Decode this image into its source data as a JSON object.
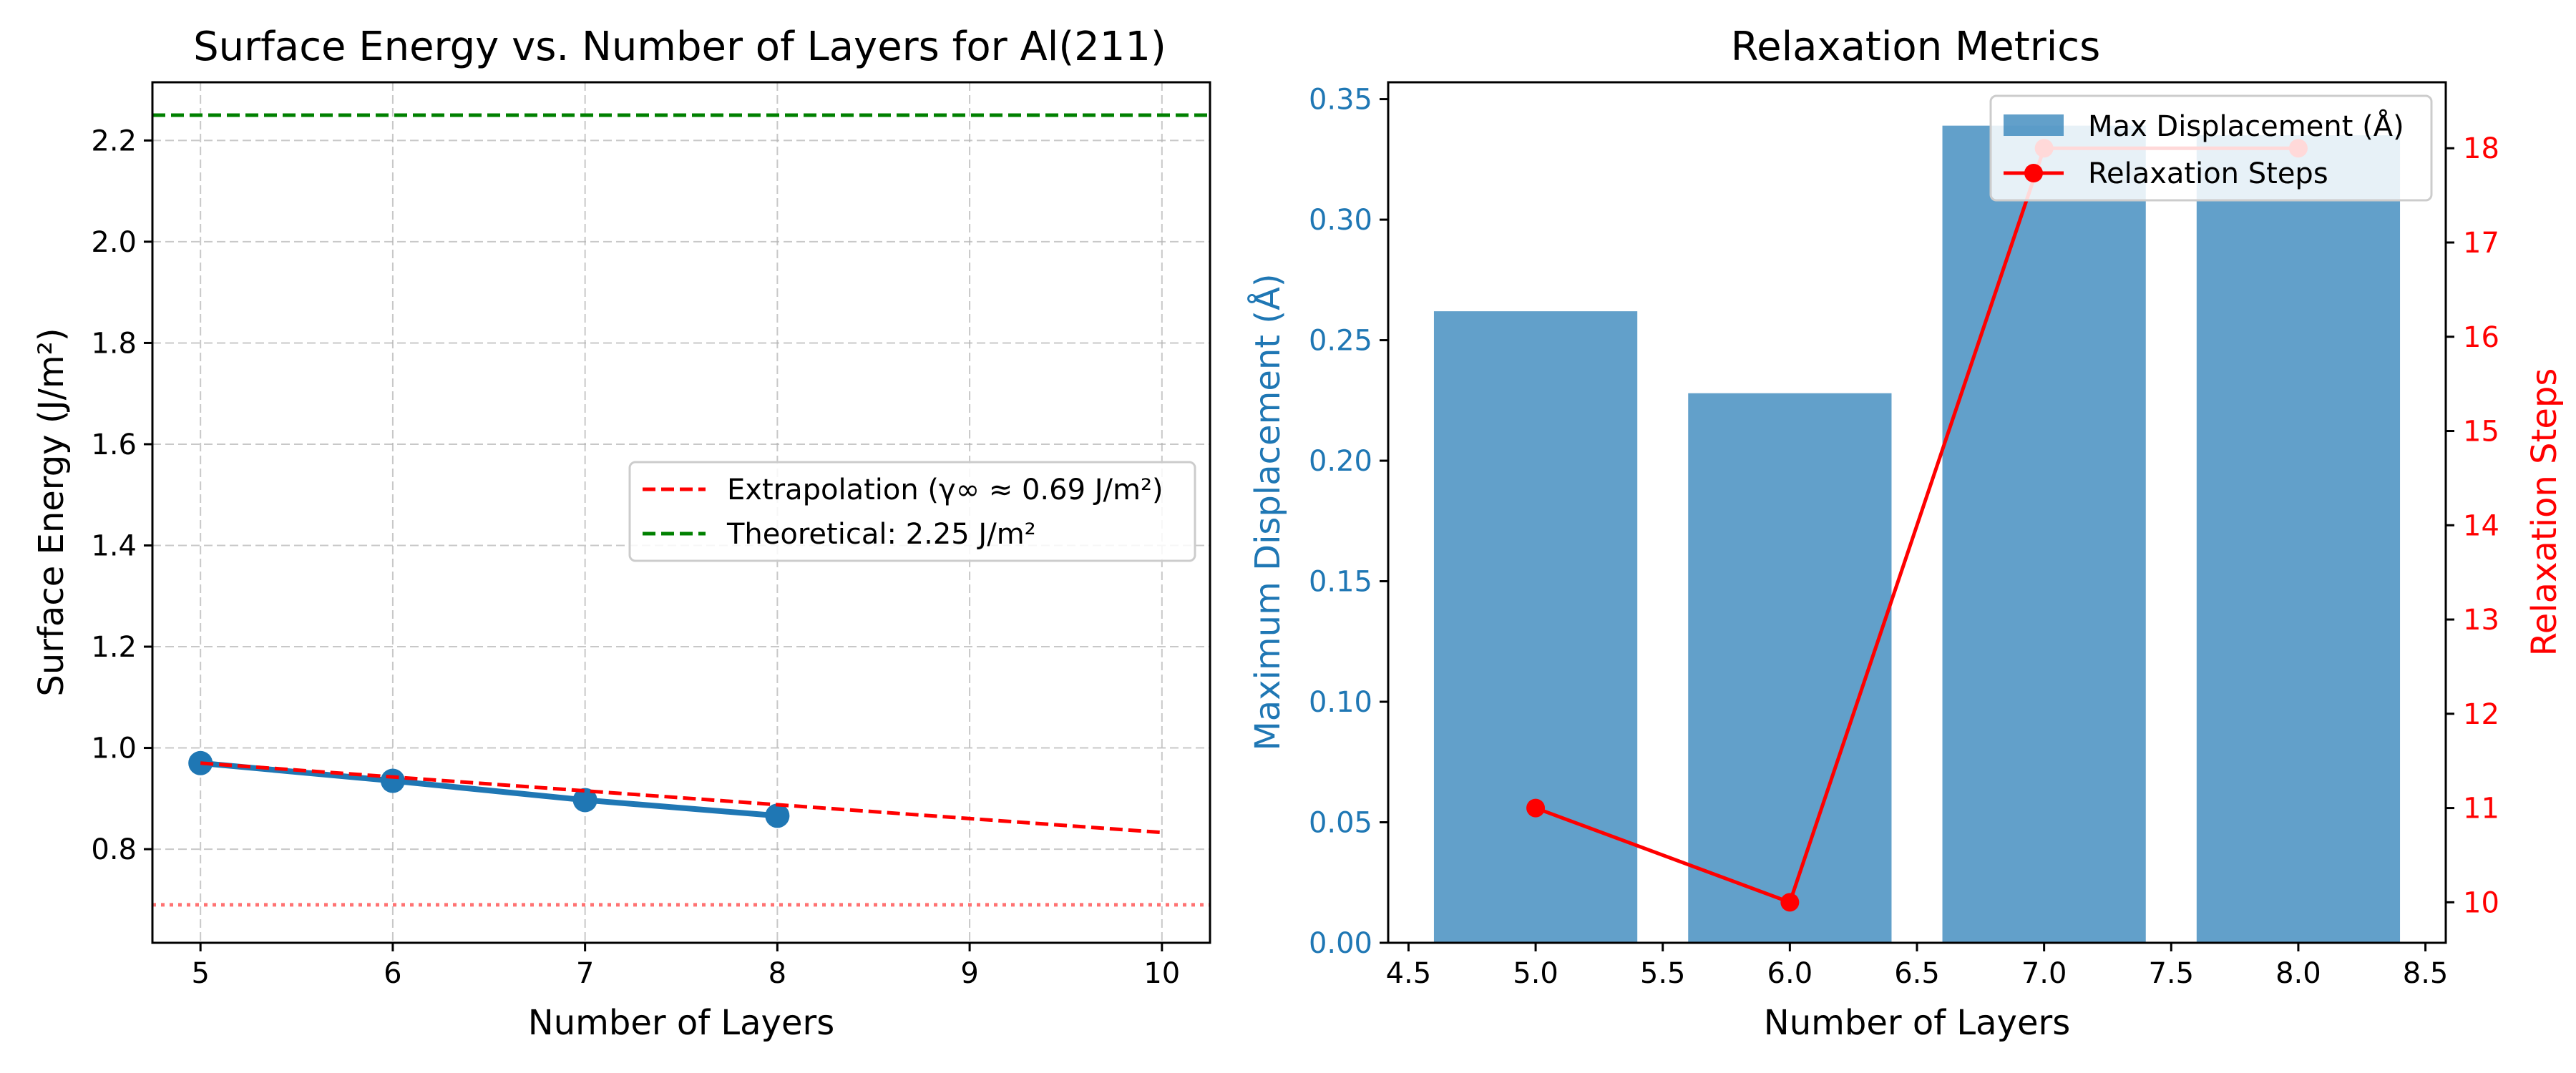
{
  "chart_data": [
    {
      "type": "line",
      "title": "Surface Energy vs. Number of Layers for Al(211)",
      "xlabel": "Number of Layers",
      "ylabel": "Surface Energy (J/m²)",
      "xlim": [
        4.75,
        10.25
      ],
      "ylim": [
        0.615,
        2.315
      ],
      "xticks": [
        5,
        6,
        7,
        8,
        9,
        10
      ],
      "yticks": [
        0.8,
        1.0,
        1.2,
        1.4,
        1.6,
        1.8,
        2.0,
        2.2
      ],
      "grid": true,
      "legend_position": "center-right",
      "series": [
        {
          "x": [
            5,
            6,
            7,
            8
          ],
          "y": [
            0.97,
            0.935,
            0.897,
            0.866
          ],
          "color": "#1f77b4",
          "style": "line-with-markers"
        },
        {
          "name": "Extrapolation (γ∞ ≈ 0.69 J/m²)",
          "x": [
            5,
            10
          ],
          "y": [
            0.97,
            0.833
          ],
          "color": "#ff0000",
          "style": "dashed"
        },
        {
          "name": "Theoretical: 2.25 J/m²",
          "y_constant": 2.25,
          "color": "#008000",
          "style": "dashed"
        },
        {
          "y_constant": 0.69,
          "color": "#ff6b6b",
          "style": "dotted"
        }
      ]
    },
    {
      "type": "bar",
      "title": "Relaxation Metrics",
      "xlabel": "Number of Layers",
      "ylabel": "Maximum Displacement (Å)",
      "ylabel_right": "Relaxation Steps",
      "xlim": [
        4.42,
        8.58
      ],
      "ylim": [
        0,
        0.357
      ],
      "ylim_right": [
        9.57,
        18.7
      ],
      "xticks": [
        4.5,
        5.0,
        5.5,
        6.0,
        6.5,
        7.0,
        7.5,
        8.0,
        8.5
      ],
      "yticks": [
        0.0,
        0.05,
        0.1,
        0.15,
        0.2,
        0.25,
        0.3,
        0.35
      ],
      "yticks_right": [
        10,
        11,
        12,
        13,
        14,
        15,
        16,
        17,
        18
      ],
      "grid": false,
      "legend_position": "top-right",
      "series": [
        {
          "name": "Max Displacement (Å)",
          "x": [
            5,
            6,
            7,
            8
          ],
          "values": [
            0.262,
            0.228,
            0.339,
            0.335
          ],
          "bar_width": 0.8,
          "color": "#1f77b4",
          "axis": "left"
        },
        {
          "name": "Relaxation Steps",
          "x": [
            5,
            6,
            7,
            8
          ],
          "values": [
            11,
            10,
            18,
            18
          ],
          "color": "#ff0000",
          "axis": "right"
        }
      ]
    }
  ]
}
